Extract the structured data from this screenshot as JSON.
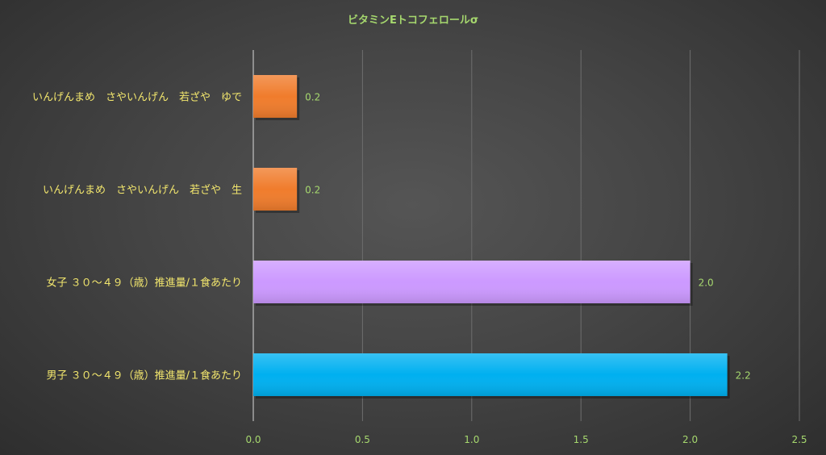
{
  "chart_data": {
    "type": "bar",
    "orientation": "horizontal",
    "title": "ビタミンEトコフェロールσ",
    "xlabel": "",
    "ylabel": "",
    "xlim": [
      0,
      2.5
    ],
    "ticks": [
      "0.0",
      "0.5",
      "1.0",
      "1.5",
      "2.0",
      "2.5"
    ],
    "tick_values": [
      0,
      0.5,
      1.0,
      1.5,
      2.0,
      2.5
    ],
    "grid": true,
    "legend": "none",
    "categories": [
      "いんげんまめ　さやいんげん　若ざや　ゆで",
      "いんげんまめ　さやいんげん　若ざや　生",
      "女子 ３０～４９（歳）推進量/１食あたり",
      "男子 ３０～４９（歳）推進量/１食あたり"
    ],
    "values": [
      0.2,
      0.2,
      2.0,
      2.17
    ],
    "value_labels": [
      "0.2",
      "0.2",
      "2.0",
      "2.2"
    ],
    "colors": [
      "#f07c2c",
      "#f07c2c",
      "#cc99ff",
      "#00b0f0"
    ]
  }
}
